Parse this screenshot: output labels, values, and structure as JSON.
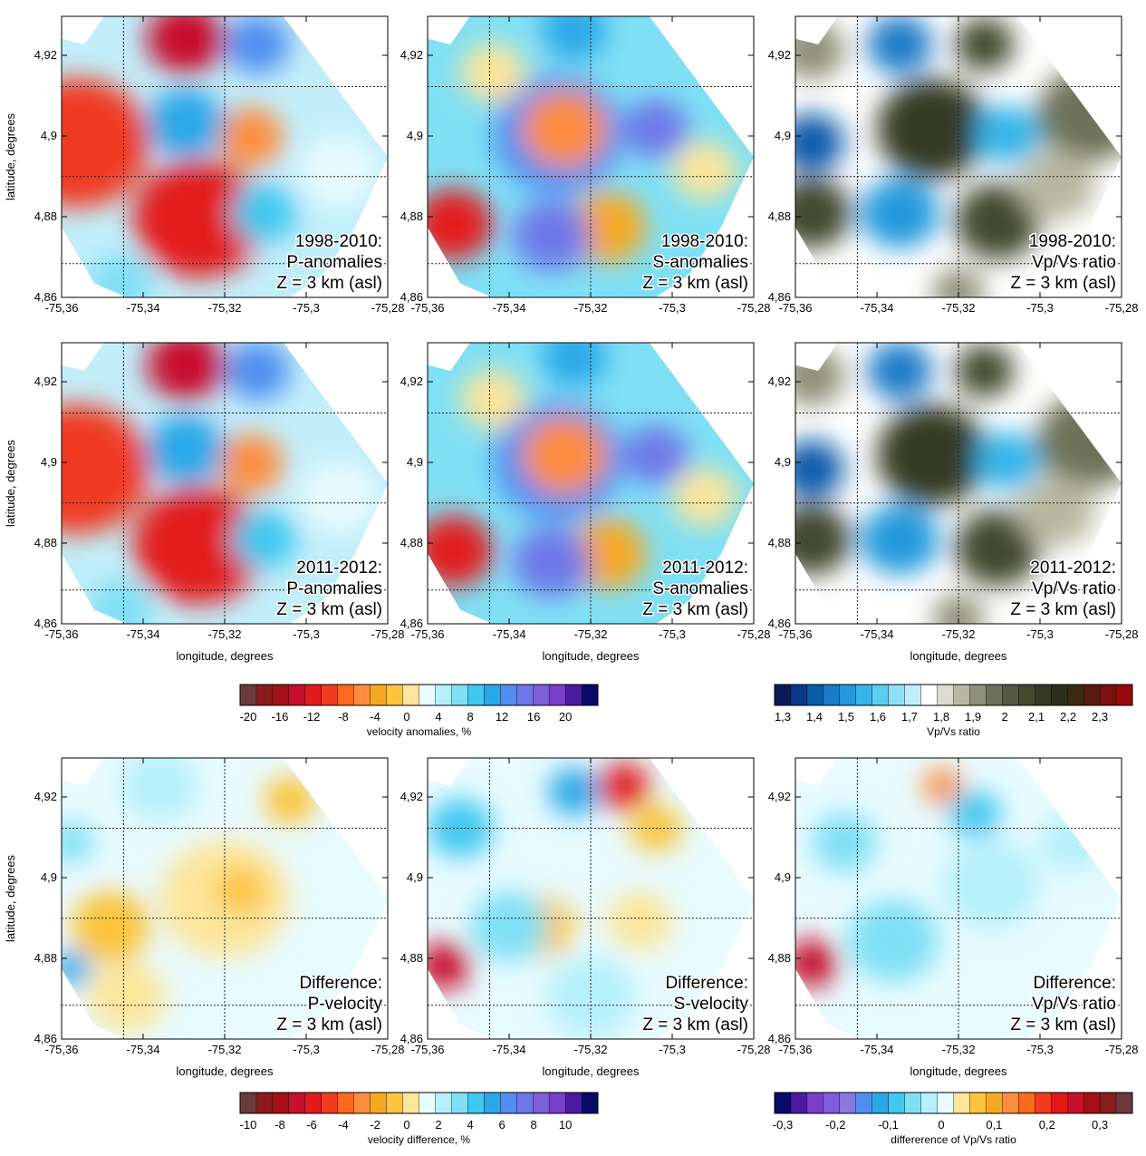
{
  "panels": [
    {
      "kind": "p",
      "label": [
        "1998-2010:",
        "P-anomalies",
        "Z = 3 km (asl)"
      ]
    },
    {
      "kind": "s",
      "label": [
        "1998-2010:",
        "S-anomalies",
        "Z = 3 km (asl)"
      ]
    },
    {
      "kind": "v",
      "label": [
        "1998-2010:",
        "Vp/Vs ratio",
        "Z = 3 km (asl)"
      ]
    },
    {
      "kind": "p",
      "label": [
        "2011-2012:",
        "P-anomalies",
        "Z = 3 km (asl)"
      ]
    },
    {
      "kind": "s",
      "label": [
        "2011-2012:",
        "S-anomalies",
        "Z = 3 km (asl)"
      ]
    },
    {
      "kind": "v",
      "label": [
        "2011-2012:",
        "Vp/Vs ratio",
        "Z = 3 km (asl)"
      ]
    },
    {
      "kind": "dp",
      "label": [
        "Difference:",
        "P-velocity",
        "Z = 3 km (asl)"
      ]
    },
    {
      "kind": "ds",
      "label": [
        "Difference:",
        "S-velocity",
        "Z = 3 km (asl)"
      ]
    },
    {
      "kind": "dv",
      "label": [
        "Difference:",
        "Vp/Vs ratio",
        "Z = 3 km (asl)"
      ]
    }
  ],
  "xticks": [
    "-75,36",
    "-75,34",
    "-75,32",
    "-75,3",
    "-75,28"
  ],
  "yticks": [
    "4,86",
    "4,88",
    "4,9",
    "4,92"
  ],
  "xlabel": "longitude, degrees",
  "ylabel": "latitude, degrees",
  "colorbars": [
    {
      "label": "velocity anomalies, %",
      "ticks": [
        "-20",
        "-16",
        "-12",
        "-8",
        "-4",
        "0",
        "4",
        "8",
        "12",
        "16",
        "20"
      ],
      "colors": [
        "#6b3a3a",
        "#8b1a1a",
        "#a50f15",
        "#c8102e",
        "#e31a1c",
        "#f03b20",
        "#fd6a1e",
        "#fd8d3c",
        "#f7a823",
        "#fcc43a",
        "#fde59a",
        "#e8fbff",
        "#b6f0fb",
        "#7fe0f5",
        "#3fc8f0",
        "#29a8e8",
        "#4f8ef0",
        "#6e78e8",
        "#7c5fd8",
        "#7a3fc8",
        "#4b1aa0",
        "#0a0a6a"
      ]
    },
    {
      "label": "Vp/Vs ratio",
      "ticks": [
        "1,3",
        "1,4",
        "1,5",
        "1,6",
        "1,7",
        "1,8",
        "1,9",
        "2",
        "2,1",
        "2,2",
        "2,3"
      ],
      "colors": [
        "#0a1a5a",
        "#0a3a8a",
        "#0b5cab",
        "#1a7cc8",
        "#2399dc",
        "#35b5ea",
        "#5ccdf2",
        "#8fdff6",
        "#c2eefa",
        "#ffffff",
        "#dcdcd0",
        "#b8b8a0",
        "#8f9078",
        "#6e7258",
        "#55593e",
        "#43482e",
        "#363a24",
        "#2c2e1c",
        "#3a2a14",
        "#5a1a10",
        "#7a1010",
        "#9a0a0a"
      ]
    },
    {
      "label": "velocity difference, %",
      "ticks": [
        "-10",
        "-8",
        "-6",
        "-4",
        "-2",
        "0",
        "2",
        "4",
        "6",
        "8",
        "10"
      ],
      "colors": [
        "#6b3a3a",
        "#8b1a1a",
        "#a50f15",
        "#c8102e",
        "#e31a1c",
        "#f03b20",
        "#fd6a1e",
        "#fd8d3c",
        "#f7a823",
        "#fcc43a",
        "#fde59a",
        "#e8fbff",
        "#b6f0fb",
        "#7fe0f5",
        "#3fc8f0",
        "#29a8e8",
        "#4f8ef0",
        "#6e78e8",
        "#7c5fd8",
        "#7a3fc8",
        "#4b1aa0",
        "#0a0a6a"
      ]
    },
    {
      "label": "differerence of Vp/Vs ratio",
      "ticks": [
        "-0,3",
        "-0,2",
        "-0,1",
        "0",
        "0,1",
        "0,2",
        "0,3"
      ],
      "colors": [
        "#0a0a6a",
        "#4b1aa0",
        "#7a3fc8",
        "#7c5fd8",
        "#8a78e0",
        "#4f8ef0",
        "#29a8e8",
        "#3fc8f0",
        "#7fe0f5",
        "#b6f0fb",
        "#e8fbff",
        "#fde59a",
        "#fcc43a",
        "#f7a823",
        "#fd8d3c",
        "#fd6a1e",
        "#f03b20",
        "#e31a1c",
        "#c8102e",
        "#a50f15",
        "#8b1a1a",
        "#6b3a3a"
      ]
    }
  ]
}
